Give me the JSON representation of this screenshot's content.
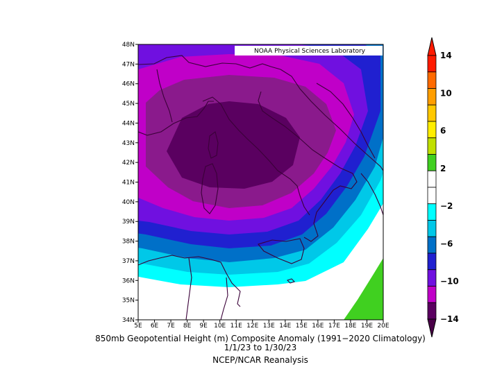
{
  "watermark": "NOAA Physical Sciences Laboratory",
  "caption": {
    "line1": "850mb Geopotential Height (m) Composite Anomaly (1991−2020 Climatology)",
    "line2": "1/1/23  to 1/30/23",
    "line3": "NCEP/NCAR Reanalysis"
  },
  "axes": {
    "lon_labels": [
      "5E",
      "6E",
      "7E",
      "8E",
      "9E",
      "10E",
      "11E",
      "12E",
      "13E",
      "14E",
      "15E",
      "16E",
      "17E",
      "18E",
      "19E",
      "20E"
    ],
    "lat_labels": [
      "48N",
      "47N",
      "46N",
      "45N",
      "44N",
      "43N",
      "42N",
      "41N",
      "40N",
      "39N",
      "38N",
      "37N",
      "36N",
      "35N",
      "34N"
    ]
  },
  "colorbar": {
    "tick_labels": [
      "14",
      "10",
      "6",
      "2",
      "−2",
      "−6",
      "−10",
      "−14"
    ],
    "colors": [
      "#ff1a00",
      "#ff6a00",
      "#ff9e00",
      "#ffc800",
      "#ffee00",
      "#c0e000",
      "#40d020",
      "#ffffff",
      "#ffffff",
      "#00ffff",
      "#00c8e8",
      "#0070c8",
      "#2020d0",
      "#7010e0",
      "#c000c8",
      "#5a0060"
    ]
  },
  "chart_data": {
    "type": "heatmap",
    "title": "850mb Geopotential Height (m) Composite Anomaly (1991−2020 Climatology)",
    "subtitle": "1/1/23  to 1/30/23",
    "source": "NCEP/NCAR Reanalysis",
    "x_range": [
      5,
      20
    ],
    "y_range": [
      34,
      48
    ],
    "levels": [
      -14,
      -12,
      -10,
      -8,
      -6,
      -4,
      -2,
      2,
      4,
      6,
      8,
      10,
      12,
      14
    ],
    "center_min_location": {
      "lon": 12,
      "lat": 43
    }
  }
}
